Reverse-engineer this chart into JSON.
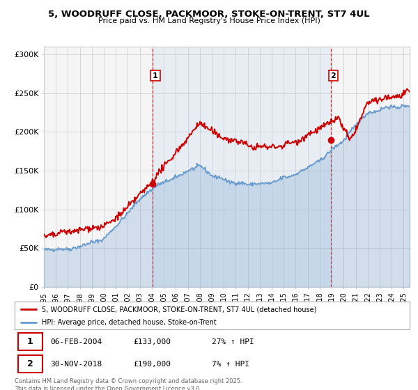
{
  "title_line1": "5, WOODRUFF CLOSE, PACKMOOR, STOKE-ON-TRENT, ST7 4UL",
  "title_line2": "Price paid vs. HM Land Registry's House Price Index (HPI)",
  "ylabel_ticks": [
    "£0",
    "£50K",
    "£100K",
    "£150K",
    "£200K",
    "£250K",
    "£300K"
  ],
  "ytick_vals": [
    0,
    50000,
    100000,
    150000,
    200000,
    250000,
    300000
  ],
  "ylim": [
    0,
    310000
  ],
  "xlim_start": 1995.0,
  "xlim_end": 2025.5,
  "color_property": "#cc0000",
  "color_hpi": "#6699cc",
  "vline_color": "#cc0000",
  "marker1_x": 2004.09,
  "marker1_y": 133000,
  "marker2_x": 2018.92,
  "marker2_y": 190000,
  "legend_line1": "5, WOODRUFF CLOSE, PACKMOOR, STOKE-ON-TRENT, ST7 4UL (detached house)",
  "legend_line2": "HPI: Average price, detached house, Stoke-on-Trent",
  "table_row1": [
    "1",
    "06-FEB-2004",
    "£133,000",
    "27% ↑ HPI"
  ],
  "table_row2": [
    "2",
    "30-NOV-2018",
    "£190,000",
    "7% ↑ HPI"
  ],
  "footer": "Contains HM Land Registry data © Crown copyright and database right 2025.\nThis data is licensed under the Open Government Licence v3.0.",
  "background_color": "#ffffff",
  "plot_bg_color": "#f5f5f5",
  "grid_color": "#cccccc",
  "xticks": [
    1995,
    1996,
    1997,
    1998,
    1999,
    2000,
    2001,
    2002,
    2003,
    2004,
    2005,
    2006,
    2007,
    2008,
    2009,
    2010,
    2011,
    2012,
    2013,
    2014,
    2015,
    2016,
    2017,
    2018,
    2019,
    2020,
    2021,
    2022,
    2023,
    2024,
    2025
  ]
}
